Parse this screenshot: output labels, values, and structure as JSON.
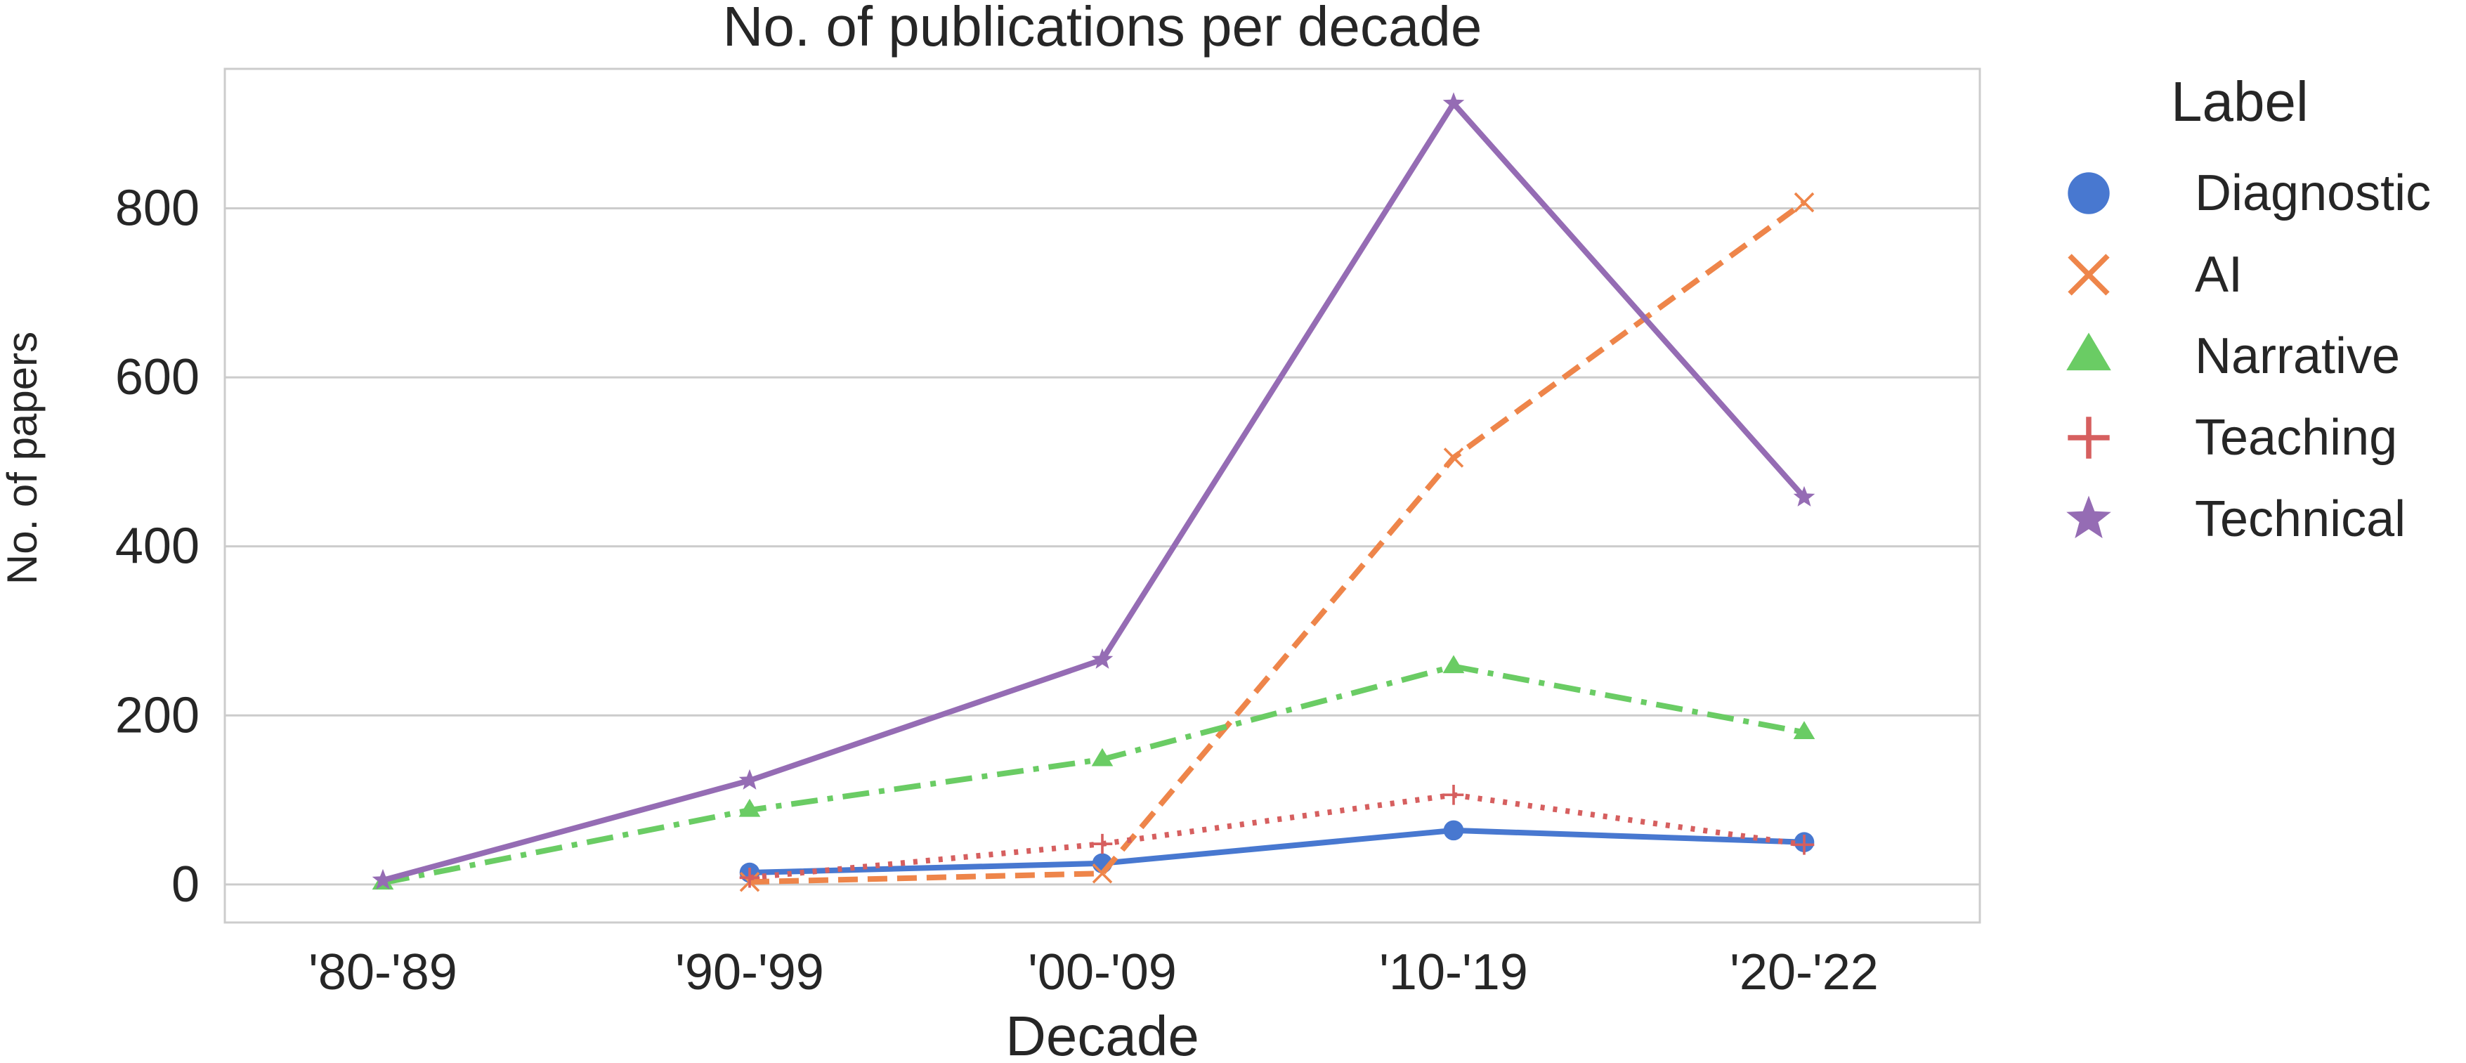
{
  "chart_data": {
    "type": "line",
    "title": "No. of publications per decade",
    "xlabel": "Decade",
    "ylabel": "No. of papers",
    "categories": [
      "'80-'89",
      "'90-'99",
      "'00-'09",
      "'10-'19",
      "'20-'22"
    ],
    "ylim": [
      -45,
      965
    ],
    "yticks": [
      0,
      200,
      400,
      600,
      800
    ],
    "grid": true,
    "legend": {
      "title": "Label",
      "placement": "outside-right"
    },
    "series": [
      {
        "name": "Diagnostic",
        "color": "#4878d0",
        "marker": "circle",
        "dash": "solid",
        "values": [
          null,
          14,
          25,
          64,
          50
        ]
      },
      {
        "name": "AI",
        "color": "#ee854a",
        "marker": "x",
        "dash": "dashed",
        "values": [
          null,
          3,
          13,
          505,
          807
        ]
      },
      {
        "name": "Narrative",
        "color": "#6acc64",
        "marker": "triangle",
        "dash": "dashdot",
        "values": [
          2,
          88,
          148,
          258,
          180
        ]
      },
      {
        "name": "Teaching",
        "color": "#d65f5f",
        "marker": "plus",
        "dash": "dotted",
        "values": [
          null,
          8,
          48,
          106,
          47
        ]
      },
      {
        "name": "Technical",
        "color": "#956cb4",
        "marker": "star",
        "dash": "solid",
        "values": [
          5,
          123,
          266,
          924,
          458
        ]
      }
    ]
  }
}
